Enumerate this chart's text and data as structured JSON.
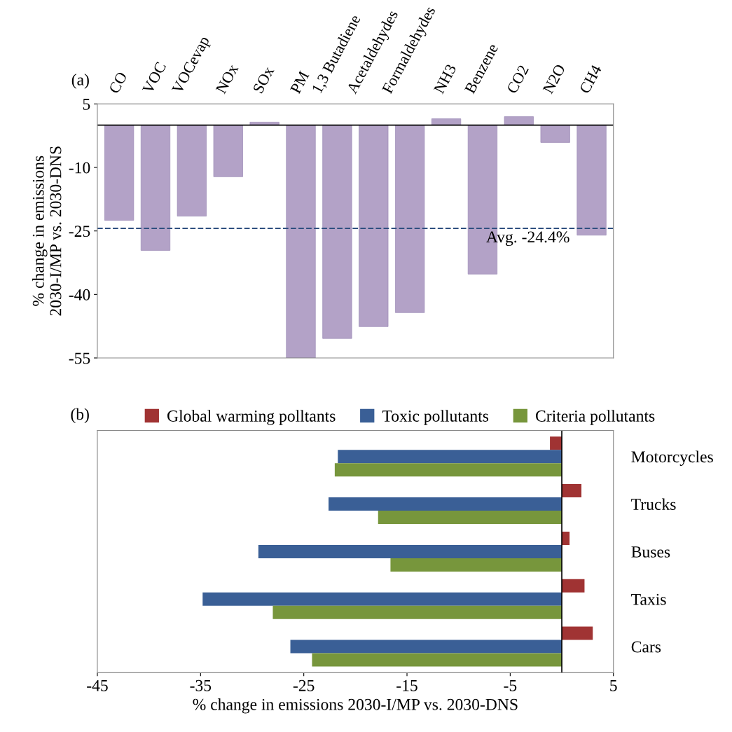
{
  "chart_data": [
    {
      "type": "bar",
      "title": "(a)",
      "ylabel": "% change in emissions\n2030-I/MP vs. 2030-DNS",
      "categories": [
        "CO",
        "VOC",
        "VOCevap",
        "NOx",
        "SOx",
        "PM",
        "1,3 Butadiene",
        "Acetaldehydes",
        "Formaldehydes",
        "NH3",
        "Benzene",
        "CO2",
        "N2O",
        "CH4"
      ],
      "values": [
        -22.5,
        -29.6,
        -21.5,
        -12.2,
        0.7,
        -55,
        -50.4,
        -47.6,
        -44.3,
        1.5,
        -35.2,
        2,
        -4.1,
        -26
      ],
      "color": "#b3a2c7",
      "ylim": [
        -55,
        5
      ],
      "yticks": [
        5,
        -10,
        -25,
        -40,
        -55
      ],
      "grid": false,
      "ref_lines": [
        {
          "axis": "y",
          "value": 0,
          "label": null,
          "color": "#000000",
          "line_style": "solid"
        },
        {
          "axis": "y",
          "value": -24.4,
          "label": "Avg. -24.4%",
          "color": "#2f4f7f",
          "line_style": "dashed"
        }
      ]
    },
    {
      "type": "bar",
      "orientation": "horizontal",
      "title": "(b)",
      "xlabel": "% change in emissions 2030-I/MP vs. 2030-DNS",
      "categories": [
        "Motorcycles",
        "Trucks",
        "Buses",
        "Taxis",
        "Cars"
      ],
      "series": [
        {
          "name": "Global warming polltants",
          "color": "#a03333",
          "values": [
            -1.15,
            1.9,
            0.75,
            2.2,
            3.0
          ]
        },
        {
          "name": "Toxic pollutants",
          "color": "#3a5f96",
          "values": [
            -21.7,
            -22.6,
            -29.4,
            -34.8,
            -26.3
          ]
        },
        {
          "name": "Criteria pollutants",
          "color": "#77963c",
          "values": [
            -22.0,
            -17.8,
            -16.6,
            -28.0,
            -24.2
          ]
        }
      ],
      "xlim": [
        -45,
        5
      ],
      "xticks": [
        -45,
        -35,
        -25,
        -15,
        -5,
        5
      ],
      "grid": false,
      "legend": "top",
      "ref_lines": [
        {
          "axis": "x",
          "value": 0,
          "label": null,
          "color": "#000000",
          "line_style": "solid"
        }
      ]
    }
  ]
}
